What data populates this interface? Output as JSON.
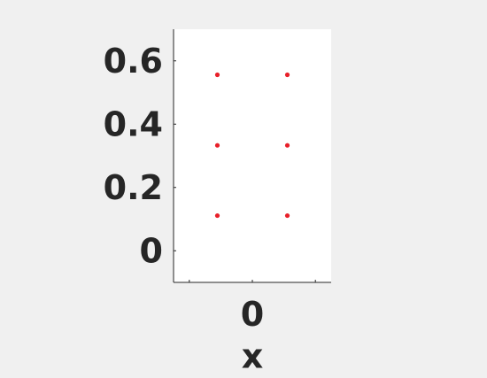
{
  "chart_data": {
    "type": "scatter",
    "title": "",
    "xlabel": "x",
    "ylabel": "",
    "xlim": [
      -0.25,
      0.25
    ],
    "ylim": [
      -0.1,
      0.7
    ],
    "x_ticks": [
      -0.2,
      0,
      0.2
    ],
    "x_tick_labels": [
      "",
      "0",
      ""
    ],
    "y_ticks": [
      0,
      0.2,
      0.4,
      0.6
    ],
    "y_tick_labels": [
      "0",
      "0.2",
      "0.4",
      "0.6"
    ],
    "grid": false,
    "series": [
      {
        "marker_color": "#e8202a",
        "points": [
          {
            "x": -0.111,
            "y": 0.111
          },
          {
            "x": -0.111,
            "y": 0.333
          },
          {
            "x": -0.111,
            "y": 0.556
          },
          {
            "x": 0.111,
            "y": 0.111
          },
          {
            "x": 0.111,
            "y": 0.333
          },
          {
            "x": 0.111,
            "y": 0.556
          }
        ]
      }
    ]
  },
  "colors": {
    "background": "#f0f0f0",
    "plot_area": "#ffffff",
    "axis": "#262626",
    "marker": "#e8202a"
  }
}
